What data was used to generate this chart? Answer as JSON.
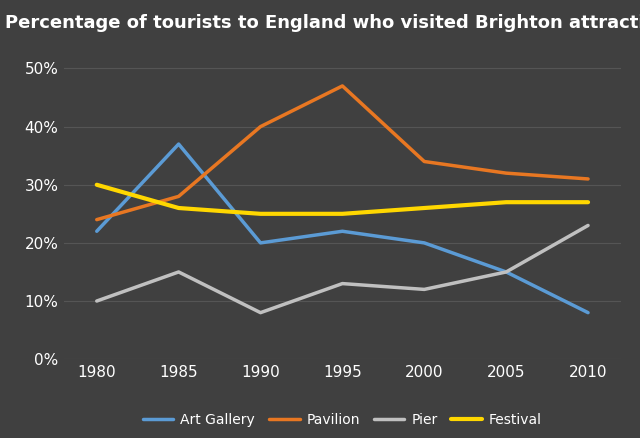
{
  "title": "Percentage of tourists to England who visited Brighton attractions",
  "years": [
    1980,
    1985,
    1990,
    1995,
    2000,
    2005,
    2010
  ],
  "series": {
    "Art Gallery": {
      "values": [
        22,
        37,
        20,
        22,
        20,
        15,
        8
      ],
      "color": "#5B9BD5",
      "linewidth": 2.5
    },
    "Pavilion": {
      "values": [
        24,
        28,
        40,
        47,
        34,
        32,
        31
      ],
      "color": "#E87722",
      "linewidth": 2.5
    },
    "Pier": {
      "values": [
        10,
        15,
        8,
        13,
        12,
        15,
        23
      ],
      "color": "#C0C0C0",
      "linewidth": 2.5
    },
    "Festival": {
      "values": [
        30,
        26,
        25,
        25,
        26,
        27,
        27
      ],
      "color": "#FFD700",
      "linewidth": 3.0
    }
  },
  "ylim": [
    0,
    55
  ],
  "yticks": [
    0,
    10,
    20,
    30,
    40,
    50
  ],
  "ytick_labels": [
    "0%",
    "10%",
    "20%",
    "30%",
    "40%",
    "50%"
  ],
  "background_color": "#404040",
  "plot_bg_color": "#404040",
  "grid_color": "#555555",
  "text_color": "#ffffff",
  "title_fontsize": 13,
  "tick_fontsize": 11,
  "legend_order": [
    "Art Gallery",
    "Pavilion",
    "Pier",
    "Festival"
  ]
}
